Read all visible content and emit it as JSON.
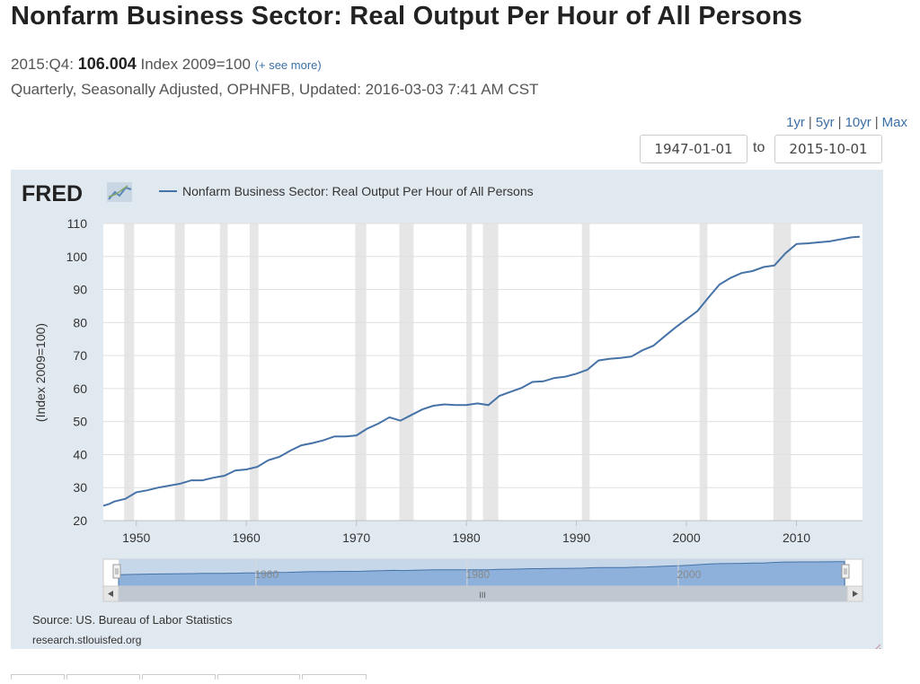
{
  "header": {
    "title": "Nonfarm Business Sector: Real Output Per Hour of All Persons",
    "period": "2015:Q4:",
    "value": "106.004",
    "units": "Index 2009=100",
    "see_more": "(+ see more)",
    "details": "Quarterly, Seasonally Adjusted, OPHNFB, Updated: 2016-03-03 7:41 AM CST"
  },
  "range_links": [
    "1yr",
    "5yr",
    "10yr",
    "Max"
  ],
  "date_range": {
    "from": "1947-01-01",
    "to_label": "to",
    "to": "2015-10-01"
  },
  "chart_meta": {
    "logo": "FRED",
    "source": "Source: US. Bureau of Labor Statistics",
    "site": "research.stlouisfed.org",
    "navigator_ticks": [
      "1960",
      "1980",
      "2000"
    ],
    "scroll_grip": "III"
  },
  "colors": {
    "line": "#4572a7",
    "panel_bg": "#e1e9f0",
    "recession": "#e6e6e6",
    "navigator_fill": "#8eb1db"
  },
  "chart_data": {
    "type": "line",
    "title": "",
    "ylabel": "(Index 2009=100)",
    "xlabel": "",
    "ylim": [
      20,
      110
    ],
    "xlim": [
      1947,
      2016
    ],
    "yticks": [
      "20",
      "30",
      "40",
      "50",
      "60",
      "70",
      "80",
      "90",
      "100",
      "110"
    ],
    "xticks": [
      "1950",
      "1960",
      "1970",
      "1980",
      "1990",
      "2000",
      "2010"
    ],
    "legend": "top-left",
    "grid": true,
    "series": [
      {
        "name": "Nonfarm Business Sector: Real Output Per Hour of All Persons",
        "x": [
          1947.0,
          1947.5,
          1948.0,
          1949.0,
          1950.0,
          1951.0,
          1952.0,
          1953.0,
          1954.0,
          1955.0,
          1956.0,
          1957.0,
          1958.0,
          1959.0,
          1960.0,
          1961.0,
          1962.0,
          1963.0,
          1964.0,
          1965.0,
          1966.0,
          1967.0,
          1968.0,
          1969.0,
          1970.0,
          1971.0,
          1972.0,
          1973.0,
          1974.0,
          1975.0,
          1976.0,
          1977.0,
          1978.0,
          1979.0,
          1980.0,
          1981.0,
          1982.0,
          1983.0,
          1984.0,
          1985.0,
          1986.0,
          1987.0,
          1988.0,
          1989.0,
          1990.0,
          1991.0,
          1992.0,
          1993.0,
          1994.0,
          1995.0,
          1996.0,
          1997.0,
          1998.0,
          1999.0,
          2000.0,
          2001.0,
          2002.0,
          2003.0,
          2004.0,
          2005.0,
          2006.0,
          2007.0,
          2008.0,
          2009.0,
          2010.0,
          2011.0,
          2012.0,
          2013.0,
          2014.0,
          2015.0,
          2015.75
        ],
        "y": [
          24.5,
          25.0,
          25.8,
          26.6,
          28.6,
          29.2,
          30.0,
          30.6,
          31.2,
          32.2,
          32.2,
          33.0,
          33.6,
          35.2,
          35.5,
          36.3,
          38.3,
          39.3,
          41.2,
          42.8,
          43.5,
          44.3,
          45.5,
          45.5,
          45.8,
          47.9,
          49.4,
          51.3,
          50.3,
          52.0,
          53.7,
          54.8,
          55.2,
          55.0,
          55.0,
          55.5,
          55.0,
          57.8,
          59.0,
          60.2,
          62.0,
          62.2,
          63.2,
          63.6,
          64.5,
          65.7,
          68.5,
          69.0,
          69.3,
          69.7,
          71.6,
          73.0,
          75.8,
          78.5,
          81.0,
          83.5,
          87.6,
          91.5,
          93.5,
          95.0,
          95.6,
          96.8,
          97.3,
          101.0,
          103.8,
          104.0,
          104.3,
          104.6,
          105.2,
          105.8,
          106.0
        ]
      }
    ],
    "recessions": [
      [
        1948.9,
        1949.8
      ],
      [
        1953.5,
        1954.4
      ],
      [
        1957.6,
        1958.3
      ],
      [
        1960.3,
        1961.1
      ],
      [
        1969.9,
        1970.9
      ],
      [
        1973.9,
        1975.2
      ],
      [
        1980.0,
        1980.5
      ],
      [
        1981.5,
        1982.9
      ],
      [
        1990.5,
        1991.2
      ],
      [
        2001.2,
        2001.9
      ],
      [
        2007.9,
        2009.5
      ]
    ]
  }
}
